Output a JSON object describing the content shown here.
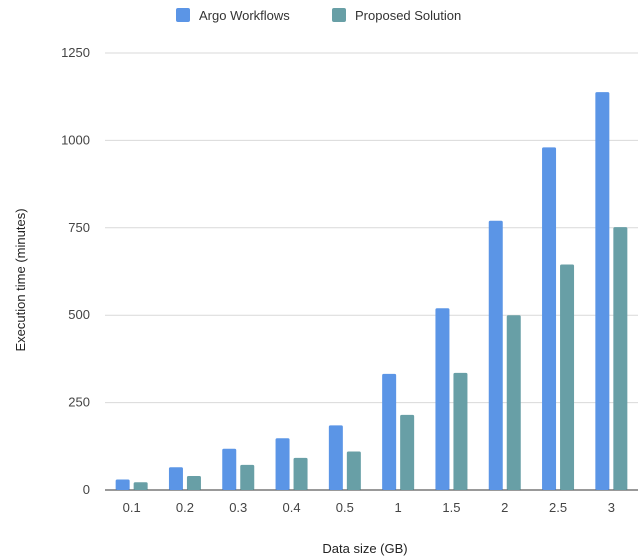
{
  "chart_data": {
    "type": "bar",
    "categories": [
      "0.1",
      "0.2",
      "0.3",
      "0.4",
      "0.5",
      "1",
      "1.5",
      "2",
      "2.5",
      "3"
    ],
    "series": [
      {
        "name": "Argo Workflows",
        "color": "#5b95e6",
        "values": [
          30,
          65,
          118,
          148,
          185,
          332,
          520,
          770,
          980,
          1138
        ]
      },
      {
        "name": "Proposed Solution",
        "color": "#689fa6",
        "values": [
          22,
          40,
          72,
          92,
          110,
          215,
          335,
          500,
          645,
          752
        ]
      }
    ],
    "xlabel": "Data size (GB)",
    "ylabel": "Execution time (minutes)",
    "ylim": [
      0,
      1250
    ],
    "yticks": [
      0,
      250,
      500,
      750,
      1000,
      1250
    ],
    "grid": true,
    "legend_position": "top"
  }
}
